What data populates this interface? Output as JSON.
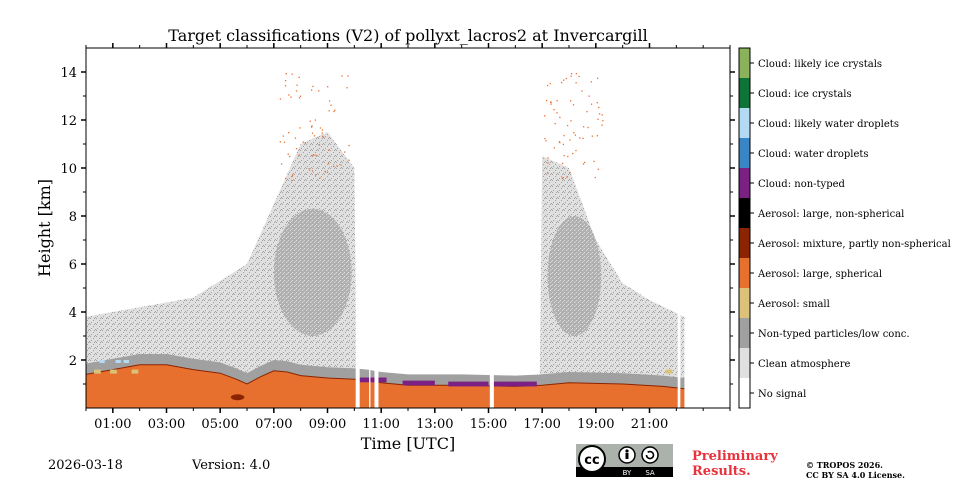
{
  "chart_data": {
    "type": "heatmap",
    "title": "Target classifications (V2) of pollyxt_lacros2 at Invercargill",
    "xlabel": "Time [UTC]",
    "ylabel": "Height [km]",
    "xlim": [
      0,
      24
    ],
    "ylim": [
      0,
      15
    ],
    "x_ticks": [
      {
        "value": 1,
        "label": "01:00"
      },
      {
        "value": 3,
        "label": "03:00"
      },
      {
        "value": 5,
        "label": "05:00"
      },
      {
        "value": 7,
        "label": "07:00"
      },
      {
        "value": 9,
        "label": "09:00"
      },
      {
        "value": 11,
        "label": "11:00"
      },
      {
        "value": 13,
        "label": "13:00"
      },
      {
        "value": 15,
        "label": "15:00"
      },
      {
        "value": 17,
        "label": "17:00"
      },
      {
        "value": 19,
        "label": "19:00"
      },
      {
        "value": 21,
        "label": "21:00"
      }
    ],
    "y_ticks": [
      {
        "value": 2,
        "label": "2"
      },
      {
        "value": 4,
        "label": "4"
      },
      {
        "value": 6,
        "label": "6"
      },
      {
        "value": 8,
        "label": "8"
      },
      {
        "value": 10,
        "label": "10"
      },
      {
        "value": 12,
        "label": "12"
      },
      {
        "value": 14,
        "label": "14"
      }
    ],
    "classes": [
      {
        "name": "No signal",
        "color": "#ffffff"
      },
      {
        "name": "Clean atmosphere",
        "color": "#e0e0e0"
      },
      {
        "name": "Non-typed particles/low conc.",
        "color": "#a0a0a0"
      },
      {
        "name": "Aerosol: small",
        "color": "#dcc278"
      },
      {
        "name": "Aerosol: large, spherical",
        "color": "#e8702e"
      },
      {
        "name": "Aerosol: mixture, partly non-spherical",
        "color": "#8b2400"
      },
      {
        "name": "Aerosol: large, non-spherical",
        "color": "#000000"
      },
      {
        "name": "Cloud: non-typed",
        "color": "#7b2184"
      },
      {
        "name": "Cloud: water droplets",
        "color": "#3a85c6"
      },
      {
        "name": "Cloud: likely water droplets",
        "color": "#b3d9f3"
      },
      {
        "name": "Cloud: ice crystals",
        "color": "#0e7337"
      },
      {
        "name": "Cloud: likely ice crystals",
        "color": "#89b25a"
      }
    ],
    "aerosol_layer_top_km": [
      {
        "time": 0.0,
        "height": 1.4
      },
      {
        "time": 0.5,
        "height": 1.5
      },
      {
        "time": 1.0,
        "height": 1.6
      },
      {
        "time": 2.0,
        "height": 1.8
      },
      {
        "time": 3.0,
        "height": 1.8
      },
      {
        "time": 4.0,
        "height": 1.6
      },
      {
        "time": 5.0,
        "height": 1.45
      },
      {
        "time": 5.6,
        "height": 1.2
      },
      {
        "time": 6.0,
        "height": 1.0
      },
      {
        "time": 6.5,
        "height": 1.3
      },
      {
        "time": 7.0,
        "height": 1.55
      },
      {
        "time": 7.5,
        "height": 1.5
      },
      {
        "time": 8.0,
        "height": 1.35
      },
      {
        "time": 9.0,
        "height": 1.25
      },
      {
        "time": 10.0,
        "height": 1.2
      },
      {
        "time": 10.5,
        "height": 1.15
      },
      {
        "time": 11.0,
        "height": 1.05
      },
      {
        "time": 12.0,
        "height": 0.95
      },
      {
        "time": 14.0,
        "height": 0.95
      },
      {
        "time": 16.0,
        "height": 0.9
      },
      {
        "time": 17.0,
        "height": 0.95
      },
      {
        "time": 18.0,
        "height": 1.05
      },
      {
        "time": 20.0,
        "height": 1.0
      },
      {
        "time": 21.5,
        "height": 0.9
      },
      {
        "time": 22.3,
        "height": 0.8
      }
    ],
    "clean_region_top_km": [
      {
        "time": 0.0,
        "height": 3.8
      },
      {
        "time": 2.0,
        "height": 4.2
      },
      {
        "time": 4.0,
        "height": 4.6
      },
      {
        "time": 6.0,
        "height": 6.0
      },
      {
        "time": 7.0,
        "height": 8.5
      },
      {
        "time": 8.0,
        "height": 11.0
      },
      {
        "time": 9.0,
        "height": 11.5
      },
      {
        "time": 10.0,
        "height": 10.0
      },
      {
        "time": 10.1,
        "height": 0.0
      },
      {
        "time": 16.9,
        "height": 0.0
      },
      {
        "time": 17.0,
        "height": 10.5
      },
      {
        "time": 18.0,
        "height": 10.0
      },
      {
        "time": 19.0,
        "height": 7.0
      },
      {
        "time": 20.0,
        "height": 5.2
      },
      {
        "time": 21.0,
        "height": 4.5
      },
      {
        "time": 22.3,
        "height": 3.8
      }
    ],
    "no_signal_gaps": [
      {
        "start": 10.05,
        "end": 10.2
      },
      {
        "start": 10.55,
        "end": 10.6
      },
      {
        "start": 10.75,
        "end": 10.9
      },
      {
        "start": 15.05,
        "end": 15.2
      },
      {
        "start": 22.05,
        "end": 22.15
      }
    ],
    "cloud_non_typed_segments": [
      {
        "start": 10.2,
        "end": 11.2,
        "height": 1.15
      },
      {
        "start": 11.8,
        "end": 13.0,
        "height": 1.02
      },
      {
        "start": 13.5,
        "end": 15.0,
        "height": 0.98
      },
      {
        "start": 15.2,
        "end": 16.8,
        "height": 0.98
      }
    ]
  },
  "footer": {
    "date": "2026-03-18",
    "version": "Version: 4.0",
    "preliminary_line1": "Preliminary",
    "preliminary_line2": "Results.",
    "copyright_line1": "© TROPOS 2026.",
    "copyright_line2": "CC BY SA 4.0 License.",
    "license_badge_by": "BY",
    "license_badge_sa": "SA",
    "license_badge_cc": "cc"
  }
}
